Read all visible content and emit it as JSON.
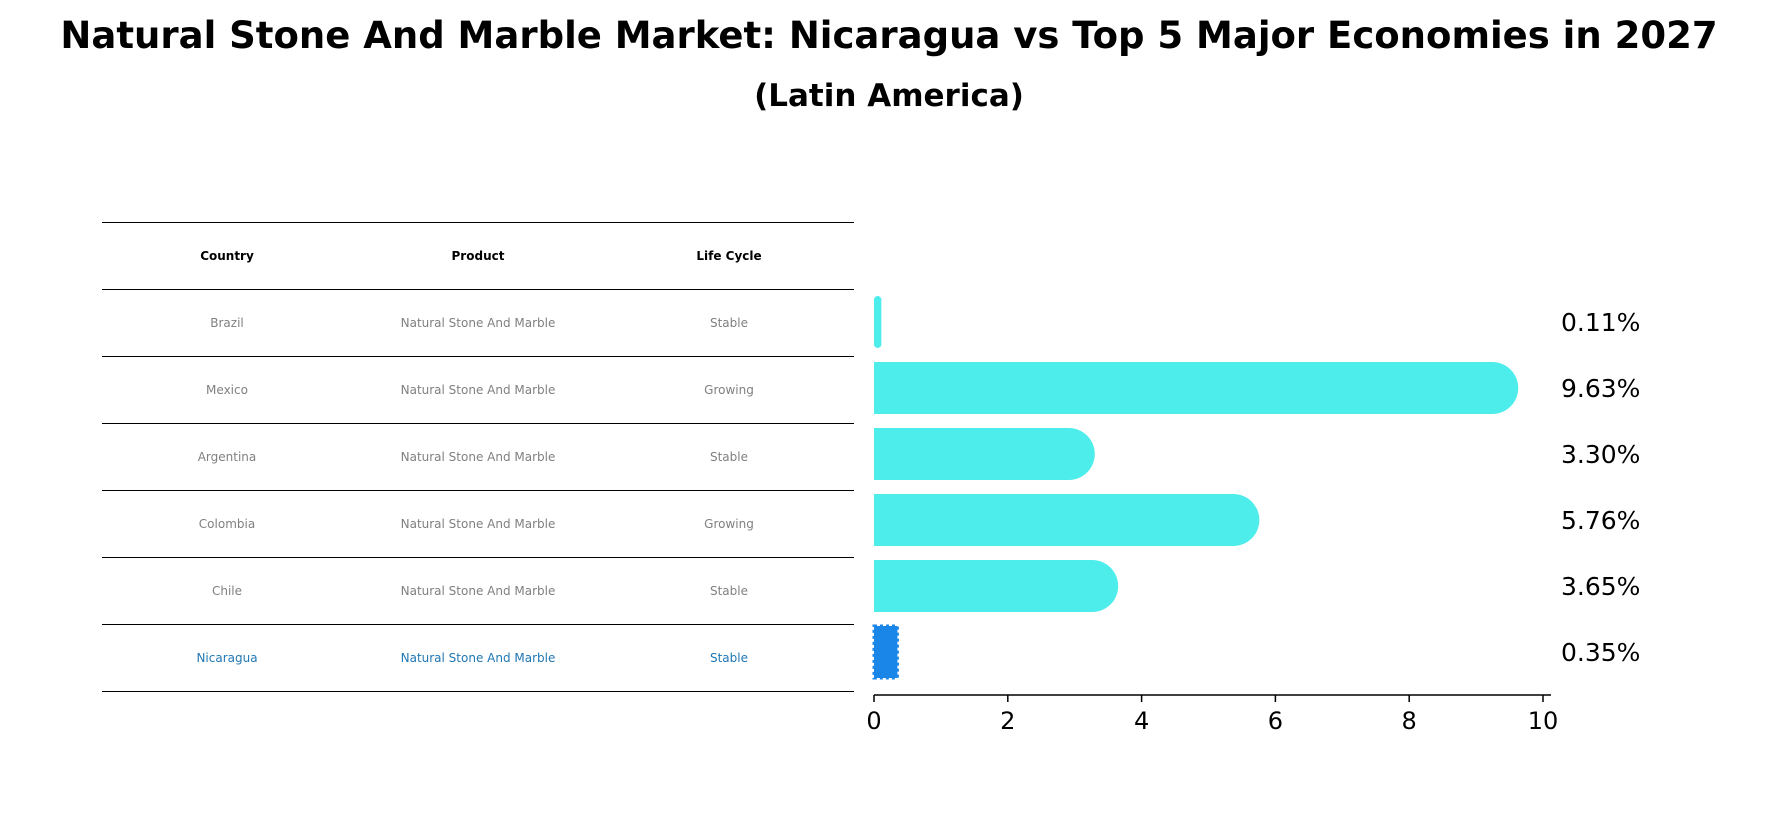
{
  "title": "Natural Stone And Marble Market: Nicaragua vs Top 5 Major Economies in 2027",
  "subtitle": "(Latin America)",
  "table": {
    "headers": [
      "Country",
      "Product",
      "Life Cycle"
    ],
    "rows": [
      {
        "country": "Brazil",
        "product": "Natural Stone And Marble",
        "life_cycle": "Stable"
      },
      {
        "country": "Mexico",
        "product": "Natural Stone And Marble",
        "life_cycle": "Growing"
      },
      {
        "country": "Argentina",
        "product": "Natural Stone And Marble",
        "life_cycle": "Stable"
      },
      {
        "country": "Colombia",
        "product": "Natural Stone And Marble",
        "life_cycle": "Growing"
      },
      {
        "country": "Chile",
        "product": "Natural Stone And Marble",
        "life_cycle": "Stable"
      },
      {
        "country": "Nicaragua",
        "product": "Natural Stone And Marble",
        "life_cycle": "Stable"
      }
    ]
  },
  "chart_data": {
    "type": "bar",
    "orientation": "horizontal",
    "categories": [
      "Brazil",
      "Mexico",
      "Argentina",
      "Colombia",
      "Chile",
      "Nicaragua"
    ],
    "values": [
      0.11,
      9.63,
      3.3,
      5.76,
      3.65,
      0.35
    ],
    "value_labels": [
      "0.11%",
      "9.63%",
      "3.30%",
      "5.76%",
      "3.65%",
      "0.35%"
    ],
    "xlim": [
      0,
      10
    ],
    "xticks": [
      0,
      2,
      4,
      6,
      8,
      10
    ],
    "xtick_labels": [
      "0",
      "2",
      "4",
      "6",
      "8",
      "10"
    ],
    "highlight": "Nicaragua",
    "colors": {
      "bar": "#4dedeb",
      "highlight": "#1a87e8",
      "highlight_text": "#1f77b4"
    },
    "grid": false
  }
}
